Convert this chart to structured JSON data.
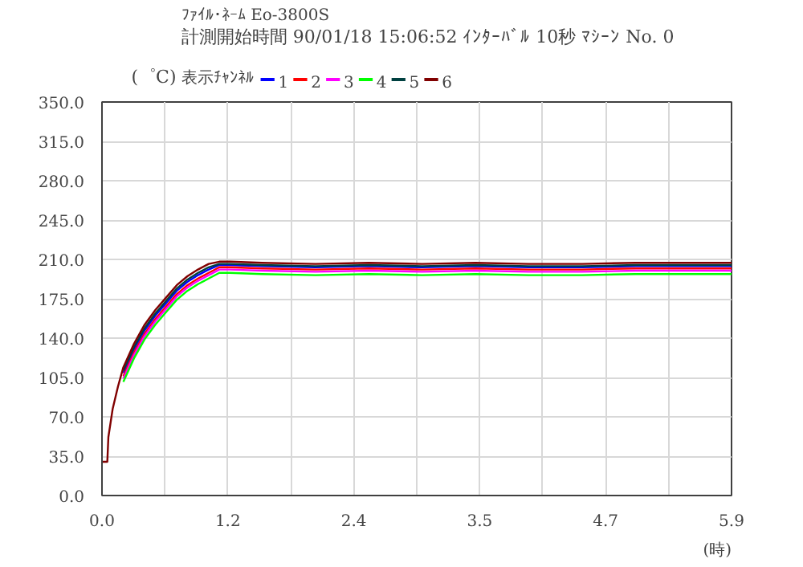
{
  "chart_data": {
    "type": "line",
    "title": "ﾌｧｲﾙ･ﾈｰﾑ Eo-3800S",
    "subtitle": "計測開始時間 90/01/18  15:06:52    ｲﾝﾀｰﾊﾞﾙ 10秒    ﾏｼｰﾝ No. 0",
    "ylabel": "(゜C)",
    "xlabel": "(時)",
    "legend_title": "表示ﾁｬﾝﾈﾙ",
    "x": [
      0,
      0.05,
      0.06,
      0.1,
      0.15,
      0.2,
      0.3,
      0.4,
      0.5,
      0.6,
      0.7,
      0.8,
      0.9,
      1.0,
      1.1,
      1.2,
      1.5,
      2.0,
      2.5,
      3.0,
      3.5,
      4.0,
      4.5,
      5.0,
      5.5,
      5.9
    ],
    "series": [
      {
        "name": "1",
        "color": "#0000ff",
        "values": [
          null,
          null,
          null,
          null,
          null,
          109,
          130,
          147,
          160,
          171,
          182,
          190,
          196,
          201,
          205,
          205,
          204,
          203,
          204,
          203,
          204,
          203,
          203,
          204,
          204,
          204
        ]
      },
      {
        "name": "2",
        "color": "#ff0000",
        "values": [
          null,
          null,
          null,
          null,
          null,
          106,
          127,
          144,
          157,
          168,
          179,
          187,
          193,
          198,
          203,
          203,
          202,
          201,
          202,
          201,
          202,
          201,
          201,
          202,
          202,
          202
        ]
      },
      {
        "name": "3",
        "color": "#ff00ff",
        "values": [
          null,
          null,
          null,
          null,
          null,
          104,
          125,
          142,
          155,
          166,
          177,
          185,
          191,
          196,
          201,
          201,
          200,
          199,
          200,
          199,
          200,
          199,
          199,
          200,
          200,
          200
        ]
      },
      {
        "name": "4",
        "color": "#00ff00",
        "values": [
          null,
          null,
          null,
          null,
          null,
          101,
          122,
          139,
          152,
          163,
          174,
          182,
          188,
          193,
          198,
          198,
          197,
          196,
          197,
          196,
          197,
          196,
          196,
          197,
          197,
          197
        ]
      },
      {
        "name": "5",
        "color": "#004040",
        "values": [
          null,
          null,
          null,
          null,
          null,
          111,
          132,
          149,
          162,
          173,
          184,
          192,
          198,
          203,
          206,
          206,
          205,
          204,
          205,
          204,
          205,
          204,
          204,
          205,
          205,
          205
        ]
      },
      {
        "name": "6",
        "color": "#800000",
        "values": [
          30,
          30,
          52,
          77,
          97,
          114,
          135,
          152,
          165,
          176,
          187,
          195,
          201,
          206,
          208,
          208,
          207,
          206,
          207,
          206,
          207,
          206,
          206,
          207,
          207,
          207
        ]
      }
    ],
    "xlim": [
      0,
      5.9
    ],
    "ylim": [
      0,
      350
    ],
    "xticks": [
      {
        "value": 0,
        "label": "0.0"
      },
      {
        "value": 0.59,
        "label": null
      },
      {
        "value": 1.18,
        "label": "1.2"
      },
      {
        "value": 1.77,
        "label": null
      },
      {
        "value": 2.36,
        "label": "2.4"
      },
      {
        "value": 2.95,
        "label": null
      },
      {
        "value": 3.54,
        "label": "3.5"
      },
      {
        "value": 4.13,
        "label": null
      },
      {
        "value": 4.72,
        "label": "4.7"
      },
      {
        "value": 5.31,
        "label": null
      },
      {
        "value": 5.9,
        "label": "5.9"
      }
    ],
    "yticks": [
      {
        "value": 0,
        "label": "0.0"
      },
      {
        "value": 35,
        "label": "35.0"
      },
      {
        "value": 70,
        "label": "70.0"
      },
      {
        "value": 105,
        "label": "105.0"
      },
      {
        "value": 140,
        "label": "140.0"
      },
      {
        "value": 175,
        "label": "175.0"
      },
      {
        "value": 210,
        "label": "210.0"
      },
      {
        "value": 245,
        "label": "245.0"
      },
      {
        "value": 280,
        "label": "280.0"
      },
      {
        "value": 315,
        "label": "315.0"
      },
      {
        "value": 350,
        "label": "350.0"
      }
    ],
    "grid": true,
    "legend": "top",
    "line_style": "solid"
  }
}
